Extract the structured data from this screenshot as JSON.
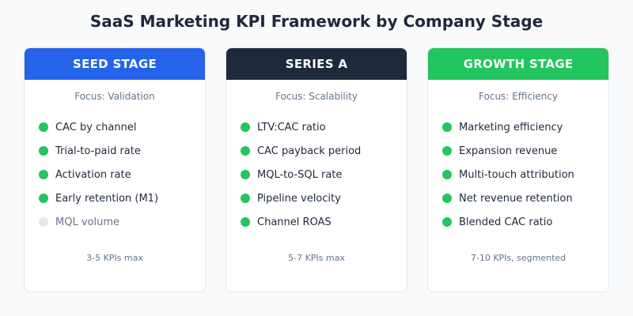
{
  "title": "SaaS Marketing KPI Framework by Company Stage",
  "colors": {
    "active": "#22c55e",
    "inactive": "#e2e8f0"
  },
  "stages": [
    {
      "name": "SEED STAGE",
      "color": "#2563eb",
      "focus": "Focus: Validation",
      "footer": "3-5 KPIs max",
      "kpis": [
        {
          "label": "CAC by channel",
          "active": true
        },
        {
          "label": "Trial-to-paid rate",
          "active": true
        },
        {
          "label": "Activation rate",
          "active": true
        },
        {
          "label": "Early retention (M1)",
          "active": true
        },
        {
          "label": "MQL volume",
          "active": false
        }
      ]
    },
    {
      "name": "SERIES A",
      "color": "#1e293b",
      "focus": "Focus: Scalability",
      "footer": "5-7 KPIs max",
      "kpis": [
        {
          "label": "LTV:CAC ratio",
          "active": true
        },
        {
          "label": "CAC payback period",
          "active": true
        },
        {
          "label": "MQL-to-SQL rate",
          "active": true
        },
        {
          "label": "Pipeline velocity",
          "active": true
        },
        {
          "label": "Channel ROAS",
          "active": true
        }
      ]
    },
    {
      "name": "GROWTH STAGE",
      "color": "#22c55e",
      "focus": "Focus: Efficiency",
      "footer": "7-10 KPIs, segmented",
      "kpis": [
        {
          "label": "Marketing efficiency",
          "active": true
        },
        {
          "label": "Expansion revenue",
          "active": true
        },
        {
          "label": "Multi-touch attribution",
          "active": true
        },
        {
          "label": "Net revenue retention",
          "active": true
        },
        {
          "label": "Blended CAC ratio",
          "active": true
        }
      ]
    }
  ]
}
